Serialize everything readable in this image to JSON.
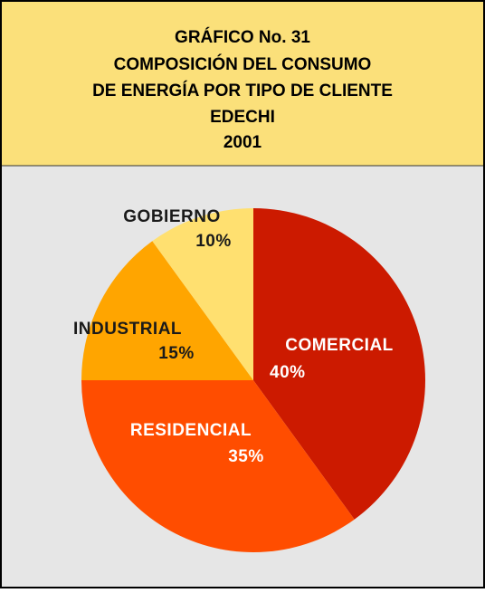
{
  "chart_data": {
    "type": "pie",
    "title": [
      "GRÁFICO No. 31",
      "COMPOSICIÓN DEL CONSUMO",
      "DE ENERGÍA POR TIPO DE CLIENTE",
      "EDECHI",
      "2001"
    ],
    "categories": [
      "COMERCIAL",
      "RESIDENCIAL",
      "INDUSTRIAL",
      "GOBIERNO"
    ],
    "values": [
      40,
      35,
      15,
      10
    ],
    "value_labels": [
      "40%",
      "35%",
      "15%",
      "10%"
    ],
    "colors": [
      "#cc1a00",
      "#ff4d00",
      "#ffa500",
      "#ffe070"
    ]
  }
}
